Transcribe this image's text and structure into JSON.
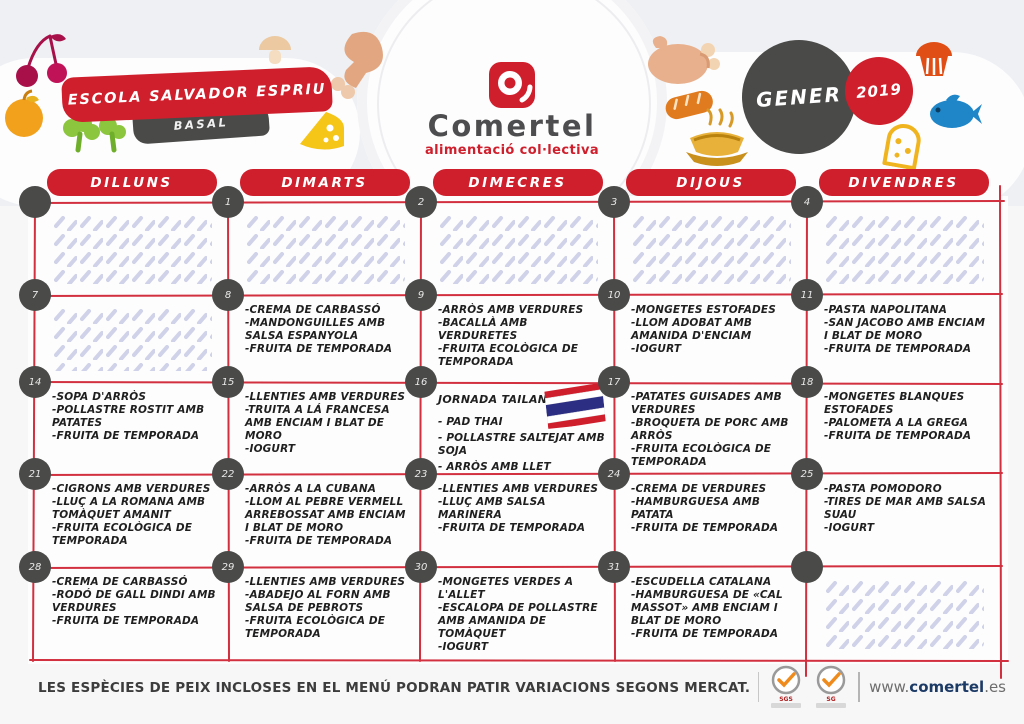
{
  "header": {
    "school_name": "ESCOLA SALVADOR ESPRIU",
    "menu_type": "BASAL",
    "brand_name": "Comertel",
    "brand_tagline": "alimentació col·lectiva",
    "month": "GENER",
    "year": "2019"
  },
  "weekdays": [
    "DILLUNS",
    "DIMARTS",
    "DIMECRES",
    "DIJOUS",
    "DIVENDRES"
  ],
  "weeks": [
    [
      {
        "num": "",
        "hatched": true
      },
      {
        "num": "1",
        "hatched": true
      },
      {
        "num": "2",
        "hatched": true
      },
      {
        "num": "3",
        "hatched": true
      },
      {
        "num": "4",
        "hatched": true
      }
    ],
    [
      {
        "num": "7",
        "hatched": true
      },
      {
        "num": "8",
        "items": [
          "-CREMA DE CARBASSÓ",
          "-MANDONGUILLES AMB SALSA ESPANYOLA",
          "-FRUITA DE TEMPORADA"
        ]
      },
      {
        "num": "9",
        "items": [
          "-ARRÒS AMB VERDURES",
          "-BACALLÀ AMB VERDURETES",
          "-FRUITA ECOLÒGICA DE TEMPORADA"
        ]
      },
      {
        "num": "10",
        "items": [
          "-MONGETES ESTOFADES",
          "-LLOM ADOBAT AMB AMANIDA D'ENCIAM",
          "-IOGURT"
        ]
      },
      {
        "num": "11",
        "items": [
          "-PASTA NAPOLITANA",
          "-SAN JACOBO AMB ENCIAM I BLAT DE MORO",
          "-FRUITA DE TEMPORADA"
        ]
      }
    ],
    [
      {
        "num": "14",
        "items": [
          "-SOPA D'ARRÒS",
          "-POLLASTRE ROSTIT AMB PATATES",
          "-FRUITA DE TEMPORADA"
        ]
      },
      {
        "num": "15",
        "items": [
          "-LLENTIES AMB VERDURES",
          "-TRUITA A LÁ FRANCESA AMB ENCIAM I BLAT DE MORO",
          "-IOGURT"
        ]
      },
      {
        "num": "16",
        "special": "JORNADA TAILANDESA",
        "flag": true,
        "items": [
          "- PAD THAI",
          "- POLLASTRE SALTEJAT AMB SOJA",
          "- ARRÒS AMB LLET"
        ]
      },
      {
        "num": "17",
        "items": [
          "-PATATES GUISADES AMB VERDURES",
          "-BROQUETA DE PORC AMB ARRÒS",
          "-FRUITA ECOLÒGICA DE TEMPORADA"
        ]
      },
      {
        "num": "18",
        "items": [
          "-MONGETES BLANQUES ESTOFADES",
          "-PALOMETA A LA GREGA",
          "-FRUITA DE TEMPORADA"
        ]
      }
    ],
    [
      {
        "num": "21",
        "items": [
          "-CIGRONS AMB VERDURES",
          "-LLUÇ A LA ROMANA AMB TOMÀQUET AMANIT",
          "-FRUITA ECOLÒGICA DE TEMPORADA"
        ]
      },
      {
        "num": "22",
        "items": [
          "-ARRÒS A LA CUBANA",
          "-LLOM AL PEBRE VERMELL ARREBOSSAT AMB ENCIAM I BLAT DE MORO",
          "-FRUITA DE TEMPORADA"
        ]
      },
      {
        "num": "23",
        "items": [
          "-LLENTIES AMB VERDURES",
          "-LLUÇ AMB SALSA MARINERA",
          "-FRUITA DE TEMPORADA"
        ]
      },
      {
        "num": "24",
        "items": [
          "-CREMA DE VERDURES",
          "-HAMBURGUESA AMB PATATA",
          "-FRUITA DE TEMPORADA"
        ]
      },
      {
        "num": "25",
        "items": [
          "-PASTA POMODORO",
          "-TIRES DE MAR AMB SALSA SUAU",
          "-IOGURT"
        ]
      }
    ],
    [
      {
        "num": "28",
        "items": [
          "-CREMA DE CARBASSÓ",
          "-RODÓ DE GALL DINDI AMB VERDURES",
          "-FRUITA DE TEMPORADA"
        ]
      },
      {
        "num": "29",
        "items": [
          "-LLENTIES AMB VERDURES",
          "-ABADEJO AL FORN AMB SALSA DE PEBROTS",
          "-FRUITA ECOLÒGICA DE TEMPORADA"
        ]
      },
      {
        "num": "30",
        "items": [
          "-MONGETES VERDES A L'ALLET",
          "-ESCALOPA DE POLLASTRE AMB AMANIDA DE TOMÀQUET",
          "-IOGURT"
        ]
      },
      {
        "num": "31",
        "items": [
          "-ESCUDELLA CATALANA",
          "-HAMBURGUESA DE «CAL MASSOT» AMB ENCIAM I BLAT DE MORO",
          "-FRUITA DE TEMPORADA"
        ]
      },
      {
        "num": "",
        "hatched": true
      }
    ]
  ],
  "footer": {
    "disclaimer": "LES ESPÈCIES DE PEIX INCLOSES EN EL MENÚ PODRAN PATIR VARIACIONS SEGONS MERCAT.",
    "website_prefix": "www.",
    "website_name": "comertel",
    "website_suffix": ".es",
    "badge1": "SGS",
    "badge2": "SG"
  },
  "icons": [
    "cherries-icon",
    "apple-icon",
    "broccoli-icon",
    "mushroom-icon",
    "chicken-leg-icon",
    "cheese-icon",
    "roast-chicken-icon",
    "bread-icon",
    "noodles-bowl-icon",
    "muffin-icon",
    "fish-icon",
    "bread-slice-icon",
    "thai-flag-icon",
    "comertel-logo-icon",
    "sgs-badge-icon"
  ],
  "colors": {
    "red": "#cf1f2c",
    "dark": "#4a4a48",
    "grid": "#d02535",
    "hatch": "#c7cae4",
    "navy": "#1c3a66"
  }
}
